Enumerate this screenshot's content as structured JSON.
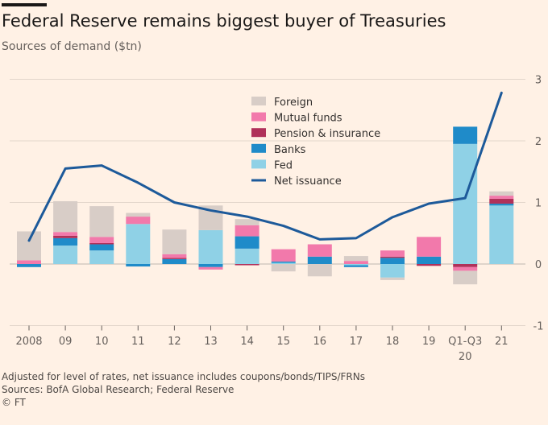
{
  "header": {
    "title": "Federal Reserve remains biggest buyer of Treasuries",
    "subtitle": "Sources of demand ($tn)"
  },
  "footer": {
    "note": "Adjusted for level of rates, net issuance includes coupons/bonds/TIPS/FRNs",
    "sources": "Sources: BofA Global Research; Federal Reserve",
    "copyright": "© FT"
  },
  "chart_data": {
    "type": "bar",
    "stacked": true,
    "categories": [
      "2008",
      "09",
      "10",
      "11",
      "12",
      "13",
      "14",
      "15",
      "16",
      "17",
      "18",
      "19",
      "Q1-Q3 20",
      "21"
    ],
    "category_ticks": [
      [
        "2008"
      ],
      [
        "09"
      ],
      [
        "10"
      ],
      [
        "11"
      ],
      [
        "12"
      ],
      [
        "13"
      ],
      [
        "14"
      ],
      [
        "15"
      ],
      [
        "16"
      ],
      [
        "17"
      ],
      [
        "18"
      ],
      [
        "19"
      ],
      [
        "Q1-Q3",
        "20"
      ],
      [
        "21"
      ]
    ],
    "series": [
      {
        "name": "Fed",
        "color": "#8fd1e6",
        "values": [
          0.0,
          0.3,
          0.22,
          0.65,
          0.0,
          0.55,
          0.25,
          0.02,
          0.0,
          -0.02,
          -0.22,
          0.0,
          1.95,
          0.95
        ]
      },
      {
        "name": "Banks",
        "color": "#1f8bc9",
        "values": [
          -0.05,
          0.12,
          0.1,
          -0.04,
          0.08,
          -0.05,
          0.2,
          0.02,
          0.12,
          -0.03,
          0.1,
          0.12,
          0.28,
          0.03
        ]
      },
      {
        "name": "Pension & insurance",
        "color": "#b0315a",
        "values": [
          0.0,
          0.04,
          0.02,
          0.0,
          0.02,
          0.0,
          -0.02,
          0.0,
          0.0,
          0.0,
          0.02,
          -0.03,
          -0.05,
          0.08
        ]
      },
      {
        "name": "Mutual funds",
        "color": "#f279ab",
        "values": [
          0.06,
          0.06,
          0.1,
          0.12,
          0.06,
          -0.04,
          0.18,
          0.2,
          0.2,
          0.05,
          0.1,
          0.32,
          -0.06,
          0.05
        ]
      },
      {
        "name": "Foreign",
        "color": "#d8cdc7",
        "values": [
          0.47,
          0.5,
          0.5,
          0.06,
          0.4,
          0.4,
          0.1,
          -0.12,
          -0.2,
          0.08,
          -0.04,
          0.0,
          -0.22,
          0.07
        ]
      }
    ],
    "line": {
      "name": "Net issuance",
      "color": "#1d5a9a",
      "values": [
        0.38,
        1.55,
        1.6,
        1.32,
        1.0,
        0.87,
        0.77,
        0.62,
        0.4,
        0.42,
        0.76,
        0.98,
        1.07,
        2.78
      ]
    },
    "legend_order": [
      "Foreign",
      "Mutual funds",
      "Pension & insurance",
      "Banks",
      "Fed",
      "Net issuance"
    ],
    "legend_position": "top-center",
    "ylim": [
      -1,
      3
    ],
    "yticks": [
      3,
      2,
      1,
      0,
      -1
    ],
    "ytick_labels": [
      "3",
      "2",
      "1",
      "0",
      "-1"
    ],
    "grid": true,
    "yaxis_side": "right"
  }
}
